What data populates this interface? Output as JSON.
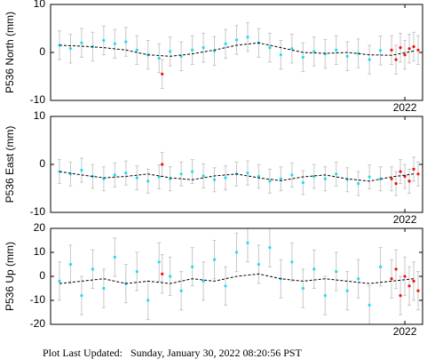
{
  "chart_data": [
    {
      "type": "scatter",
      "ylabel": "P536 North (mm)",
      "xlim": [
        2018.0,
        2022.2
      ],
      "xticks": [
        2022
      ],
      "ylim": [
        -10,
        10
      ],
      "yticks": [
        10,
        0,
        -10
      ],
      "series": [
        {
          "mark": "point",
          "color": "#22ddee",
          "error": 3,
          "x": [
            2018.1,
            2018.225,
            2018.35,
            2018.475,
            2018.6,
            2018.725,
            2018.85,
            2018.975,
            2019.1,
            2019.225,
            2019.35,
            2019.475,
            2019.6,
            2019.725,
            2019.85,
            2019.975,
            2020.1,
            2020.225,
            2020.35,
            2020.475,
            2020.6,
            2020.725,
            2020.85,
            2020.975,
            2021.1,
            2021.225,
            2021.35,
            2021.475,
            2021.6,
            2021.725
          ],
          "values": [
            1.5,
            0.8,
            2.0,
            1.2,
            2.5,
            1.8,
            2.2,
            0.5,
            -0.5,
            -1.2,
            0.2,
            -0.8,
            0.5,
            1.0,
            0.3,
            1.8,
            2.6,
            3.2,
            2.0,
            1.0,
            -0.5,
            0.8,
            -1.0,
            0.2,
            -0.3,
            0.5,
            -0.8,
            -0.2,
            -1.5,
            0.4
          ]
        },
        {
          "mark": "point",
          "color": "#ee1111",
          "error": 3,
          "x": [
            2019.26,
            2021.85,
            2021.9,
            2021.95,
            2022.0,
            2022.05,
            2022.1,
            2022.15
          ],
          "values": [
            -4.5,
            0.5,
            -1.5,
            1.0,
            -0.5,
            0.8,
            1.2,
            0.5
          ]
        },
        {
          "mark": "dashed",
          "color": "#000000",
          "x": [
            2018.1,
            2018.35,
            2018.6,
            2018.85,
            2019.1,
            2019.35,
            2019.6,
            2019.85,
            2020.1,
            2020.35,
            2020.6,
            2020.85,
            2021.1,
            2021.35,
            2021.6,
            2021.85,
            2022.1
          ],
          "values": [
            1.5,
            1.3,
            1.0,
            0.5,
            -0.5,
            -0.8,
            -0.3,
            0.5,
            1.5,
            2.0,
            1.0,
            0,
            -0.2,
            0,
            -0.5,
            -0.6,
            0.3
          ]
        }
      ]
    },
    {
      "type": "scatter",
      "ylabel": "P536 East (mm)",
      "xlim": [
        2018.0,
        2022.2
      ],
      "xticks": [
        2022
      ],
      "ylim": [
        -10,
        10
      ],
      "yticks": [
        10,
        0,
        -10
      ],
      "series": [
        {
          "mark": "point",
          "color": "#22ddee",
          "error": 2.5,
          "x": [
            2018.1,
            2018.225,
            2018.35,
            2018.475,
            2018.6,
            2018.725,
            2018.85,
            2018.975,
            2019.1,
            2019.225,
            2019.35,
            2019.475,
            2019.6,
            2019.725,
            2019.85,
            2019.975,
            2020.1,
            2020.225,
            2020.35,
            2020.475,
            2020.6,
            2020.725,
            2020.85,
            2020.975,
            2021.1,
            2021.225,
            2021.35,
            2021.475,
            2021.6,
            2021.725
          ],
          "values": [
            -1.5,
            -2.0,
            -1.2,
            -2.5,
            -3.0,
            -2.2,
            -1.8,
            -2.8,
            -3.5,
            -2.6,
            -3.0,
            -2.0,
            -1.5,
            -2.4,
            -3.2,
            -2.8,
            -2.0,
            -1.8,
            -2.5,
            -3.5,
            -3.0,
            -2.2,
            -3.8,
            -2.5,
            -3.0,
            -2.0,
            -3.2,
            -4.0,
            -2.6,
            -3.0
          ]
        },
        {
          "mark": "point",
          "color": "#ee1111",
          "error": 2.5,
          "x": [
            2019.26,
            2021.85,
            2021.9,
            2021.95,
            2022.0,
            2022.05,
            2022.1,
            2022.15
          ],
          "values": [
            0,
            -3,
            -4,
            -1.5,
            -2.5,
            -3.5,
            -1,
            -2
          ]
        },
        {
          "mark": "dashed",
          "color": "#000000",
          "x": [
            2018.1,
            2018.35,
            2018.6,
            2018.85,
            2019.1,
            2019.35,
            2019.6,
            2019.85,
            2020.1,
            2020.35,
            2020.6,
            2020.85,
            2021.1,
            2021.35,
            2021.6,
            2021.85,
            2022.1
          ],
          "values": [
            -1.5,
            -2.2,
            -2.8,
            -2.5,
            -2.0,
            -2.8,
            -3.2,
            -2.4,
            -2.0,
            -2.8,
            -3.4,
            -2.6,
            -2.2,
            -3.0,
            -3.5,
            -2.6,
            -2.0
          ]
        }
      ]
    },
    {
      "type": "scatter",
      "ylabel": "P536 Up (mm)",
      "xlim": [
        2018.0,
        2022.2
      ],
      "xticks": [
        2022
      ],
      "ylim": [
        -20,
        20
      ],
      "yticks": [
        20,
        10,
        0,
        -10,
        -20
      ],
      "series": [
        {
          "mark": "point",
          "color": "#22ddee",
          "error": 8,
          "x": [
            2018.1,
            2018.225,
            2018.35,
            2018.475,
            2018.6,
            2018.725,
            2018.85,
            2018.975,
            2019.1,
            2019.225,
            2019.35,
            2019.475,
            2019.6,
            2019.725,
            2019.85,
            2019.975,
            2020.1,
            2020.225,
            2020.35,
            2020.475,
            2020.6,
            2020.725,
            2020.85,
            2020.975,
            2021.1,
            2021.225,
            2021.35,
            2021.475,
            2021.6,
            2021.725
          ],
          "values": [
            -2,
            5,
            -8,
            3,
            -5,
            8,
            -3,
            2,
            -10,
            6,
            0,
            -6,
            4,
            -2,
            7,
            -4,
            10,
            14,
            5,
            12,
            -1,
            6,
            -5,
            3,
            -8,
            2,
            -6,
            -1,
            -12,
            4
          ]
        },
        {
          "mark": "point",
          "color": "#ee1111",
          "error": 8,
          "x": [
            2019.26,
            2021.85,
            2021.9,
            2021.95,
            2022.0,
            2022.05,
            2022.1,
            2022.15
          ],
          "values": [
            1,
            -1,
            3,
            -8,
            0,
            -4,
            -2,
            -6
          ]
        },
        {
          "mark": "dashed",
          "color": "#000000",
          "x": [
            2018.1,
            2018.35,
            2018.6,
            2018.85,
            2019.1,
            2019.35,
            2019.6,
            2019.85,
            2020.1,
            2020.35,
            2020.6,
            2020.85,
            2021.1,
            2021.35,
            2021.6,
            2021.85,
            2022.1
          ],
          "values": [
            -3,
            -2,
            -1,
            -3,
            -2,
            -3,
            -1,
            -2,
            0,
            1,
            -1,
            -2,
            -1,
            -2,
            -3,
            -2,
            -1
          ]
        }
      ]
    }
  ],
  "footer": {
    "label": "Plot Last Updated:",
    "timestamp": "Sunday, January 30, 2022 08:20:56 PST"
  }
}
